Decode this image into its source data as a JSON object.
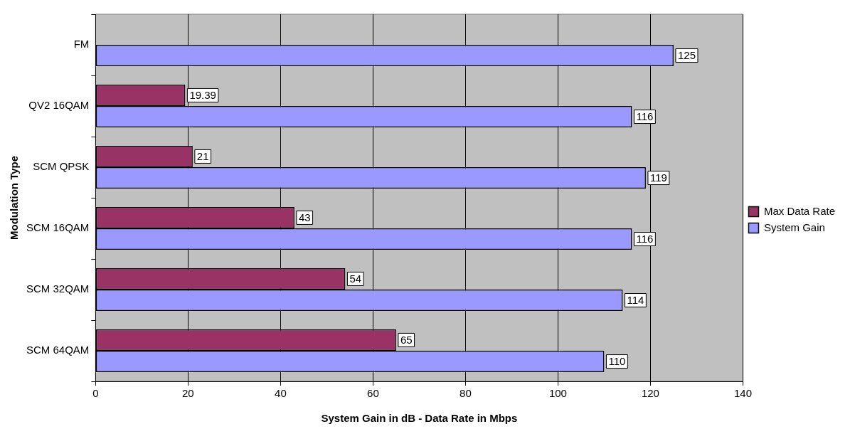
{
  "chart_data": {
    "type": "bar",
    "orientation": "horizontal",
    "xlabel": "System Gain in dB - Data Rate in Mbps",
    "ylabel": "Modulation Type",
    "categories": [
      "FM",
      "QV2 16QAM",
      "SCM QPSK",
      "SCM 16QAM",
      "SCM 32QAM",
      "SCM 64QAM"
    ],
    "series": [
      {
        "name": "Max Data Rate",
        "color": "#993366",
        "values": [
          null,
          19.39,
          21,
          43,
          54,
          65
        ]
      },
      {
        "name": "System Gain",
        "color": "#9999ff",
        "values": [
          125,
          116,
          119,
          116,
          114,
          110
        ]
      }
    ],
    "xlim": [
      0,
      140
    ],
    "xticks": [
      0,
      20,
      40,
      60,
      80,
      100,
      120,
      140
    ],
    "grid": "x",
    "legend": "right",
    "data_labels": true
  }
}
